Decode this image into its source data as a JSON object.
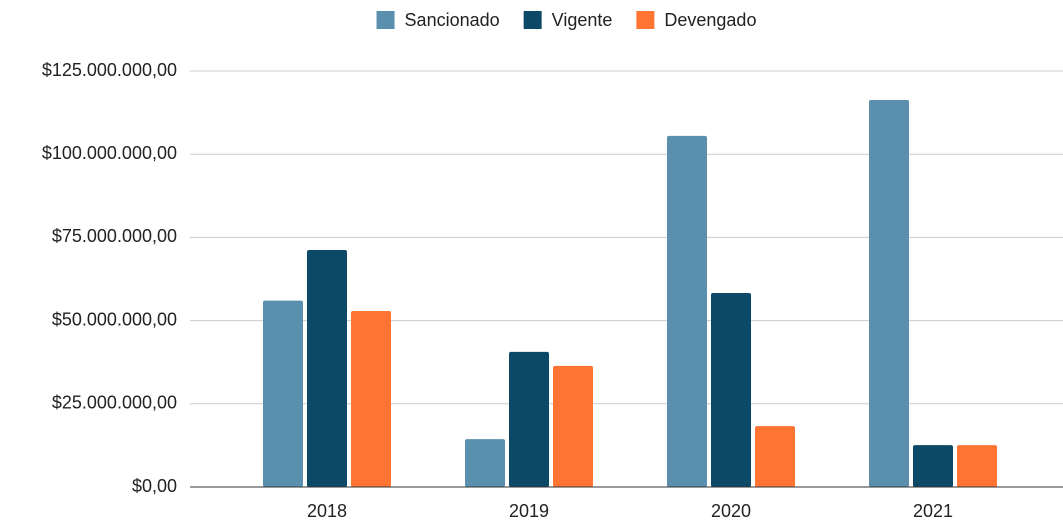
{
  "chart_data": {
    "type": "bar",
    "categories": [
      "2018",
      "2019",
      "2020",
      "2021"
    ],
    "series": [
      {
        "name": "Sancionado",
        "color": "#5a90ae",
        "values": [
          56000000,
          14400000,
          105500000,
          116300000
        ]
      },
      {
        "name": "Vigente",
        "color": "#0b4966",
        "values": [
          71200000,
          40600000,
          58300000,
          12600000
        ]
      },
      {
        "name": "Devengado",
        "color": "#ff7433",
        "values": [
          52900000,
          36400000,
          18300000,
          12600000
        ]
      }
    ],
    "ylim": [
      0,
      125000000
    ],
    "yticks": [
      {
        "value": 0,
        "label": "$0,00"
      },
      {
        "value": 25000000,
        "label": "$25.000.000,00"
      },
      {
        "value": 50000000,
        "label": "$50.000.000,00"
      },
      {
        "value": 75000000,
        "label": "$75.000.000,00"
      },
      {
        "value": 100000000,
        "label": "$100.000.000,00"
      },
      {
        "value": 125000000,
        "label": "$125.000.000,00"
      }
    ],
    "grid": true,
    "legend": "top"
  }
}
